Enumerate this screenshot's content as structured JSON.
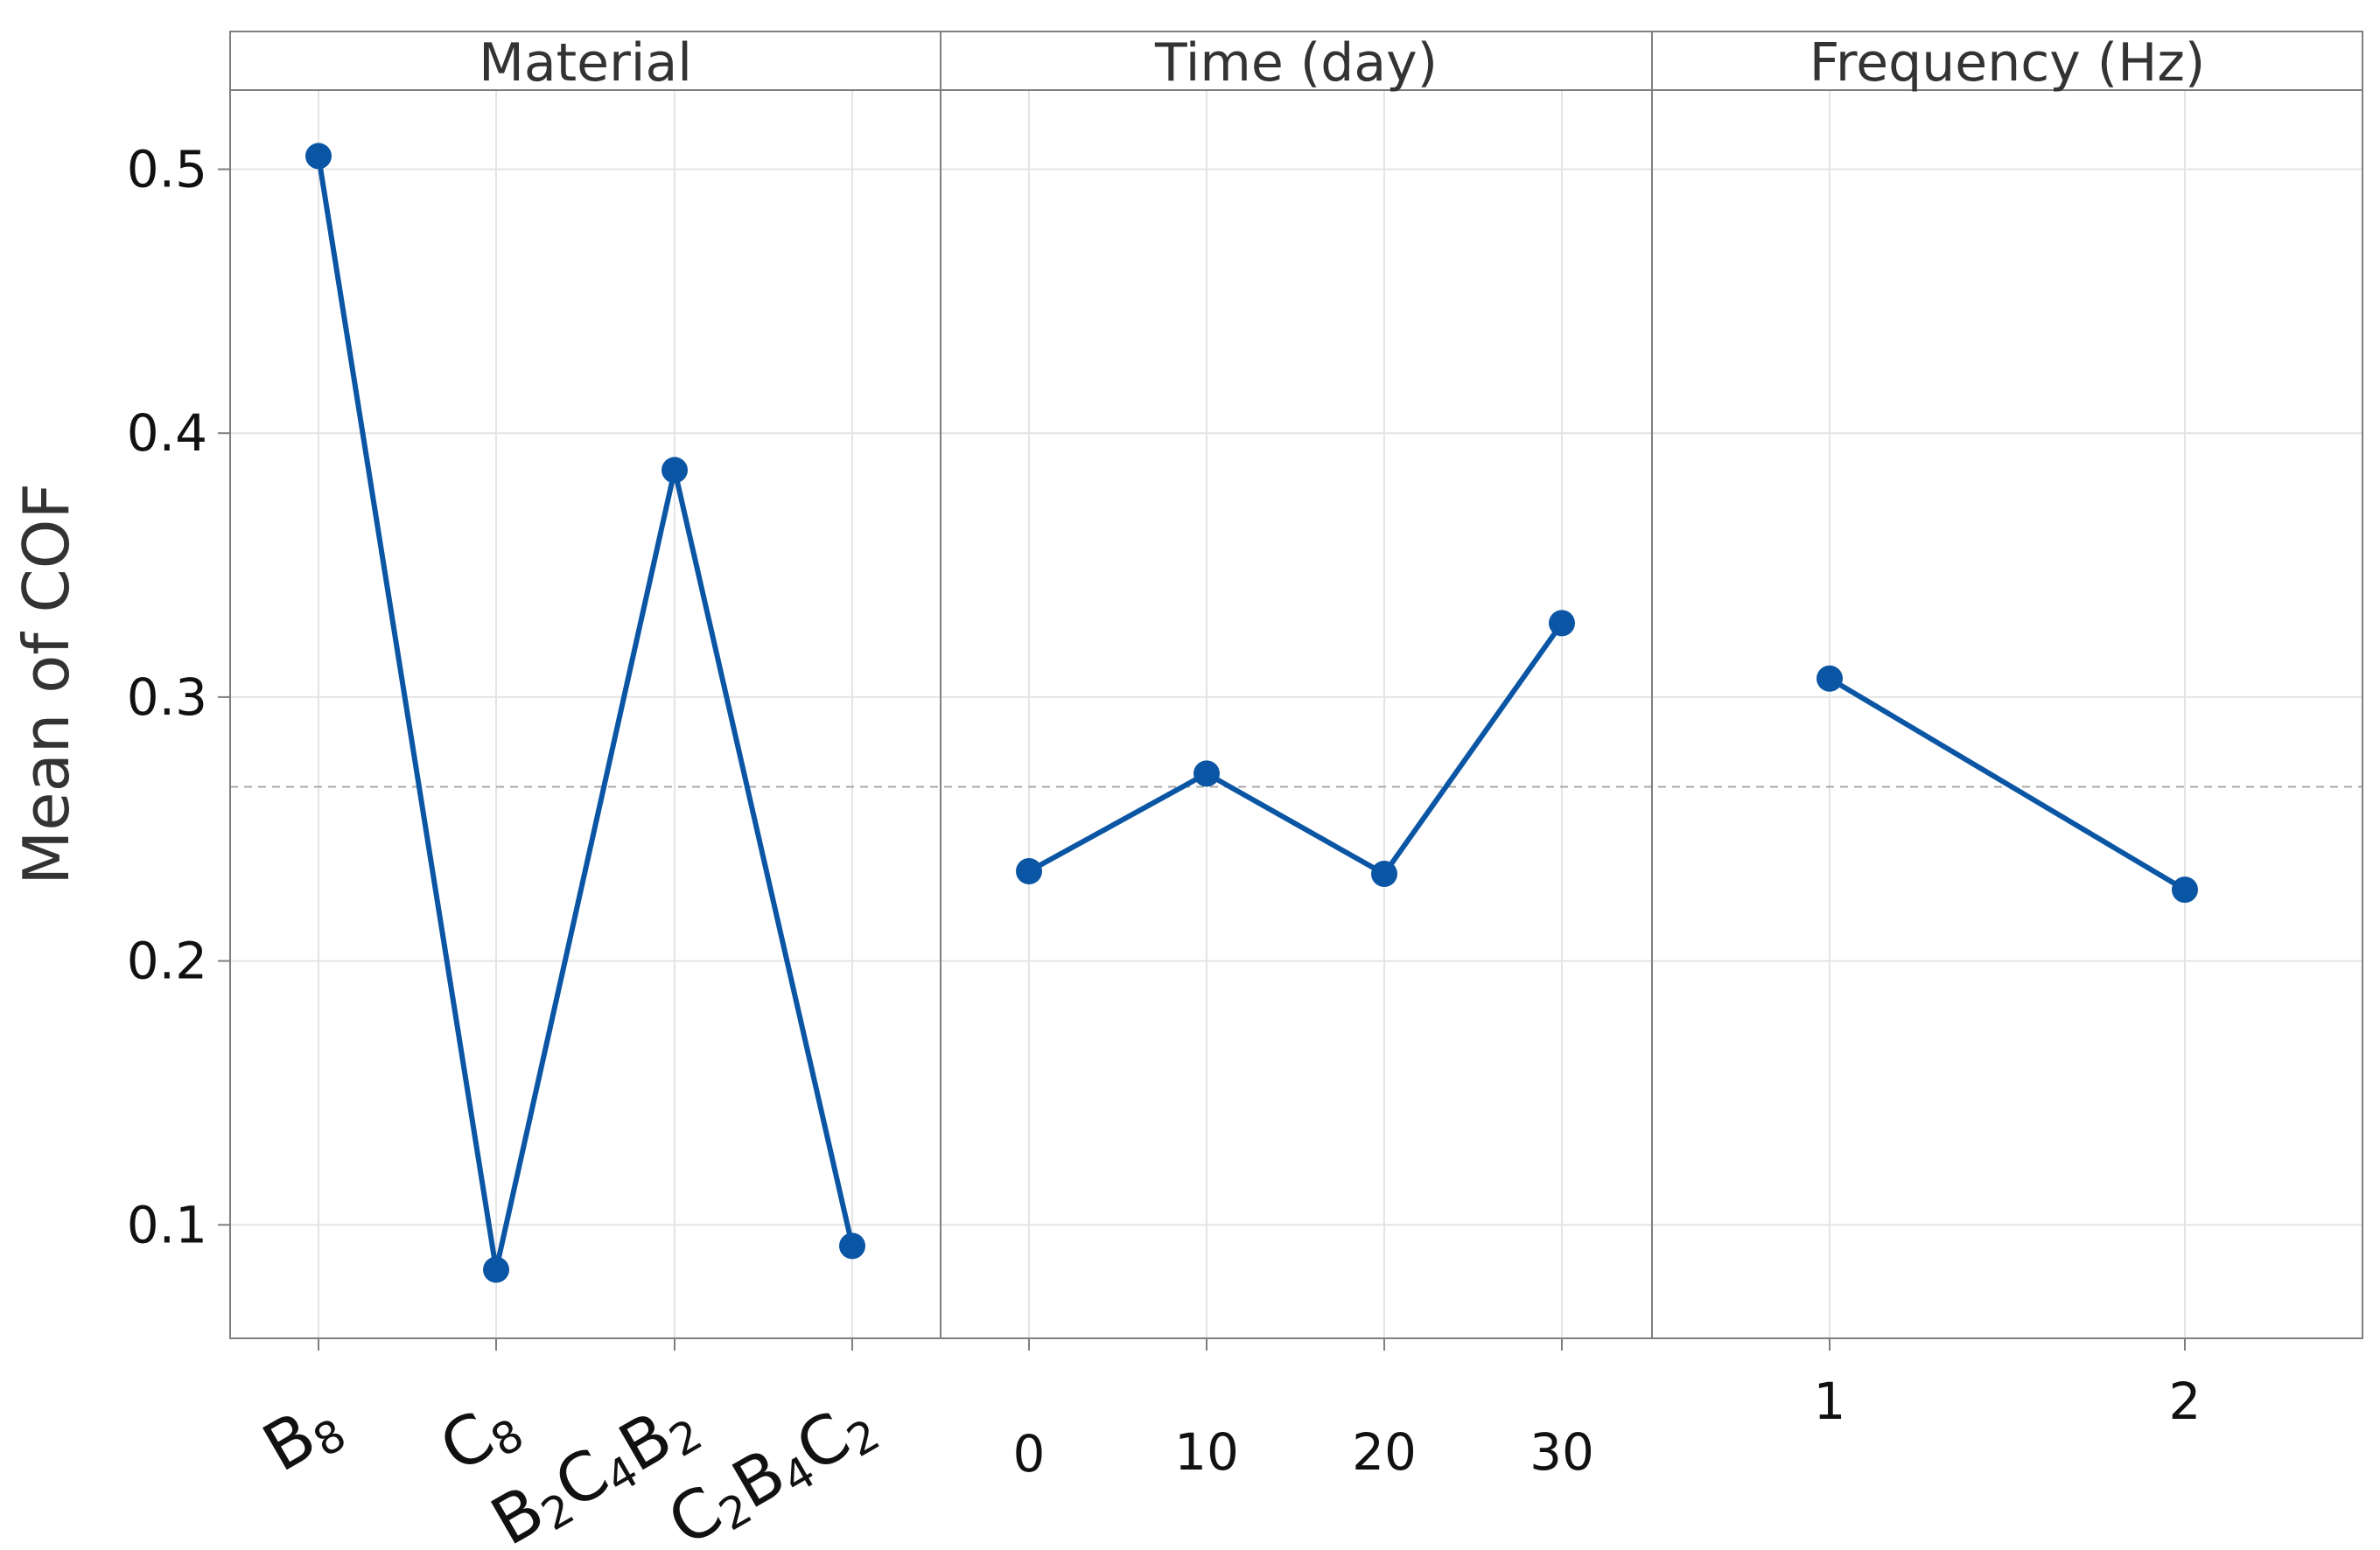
{
  "chart_data": {
    "type": "line",
    "ylabel": "Mean of COF",
    "ylim": [
      0.057,
      0.53
    ],
    "yticks": [
      "0.1",
      "0.2",
      "0.3",
      "0.4",
      "0.5"
    ],
    "ytick_values": [
      0.1,
      0.2,
      0.3,
      0.4,
      0.5
    ],
    "reference_mean": 0.266,
    "grid": true,
    "colors": {
      "series": "#0b56a4",
      "reference": "#a8a8a8"
    },
    "panels": [
      {
        "title": "Material",
        "categories": [
          {
            "base": [
              "B",
              "8"
            ],
            "label": "B8"
          },
          {
            "base": [
              "C",
              "8"
            ],
            "label": "C8"
          },
          {
            "base": [
              "B",
              "2",
              "C",
              "4",
              "B",
              "2"
            ],
            "label": "B2C4B2"
          },
          {
            "base": [
              "C",
              "2",
              "B",
              "4",
              "C",
              "2"
            ],
            "label": "C2B4C2"
          }
        ],
        "values": [
          0.505,
          0.083,
          0.386,
          0.092
        ]
      },
      {
        "title": "Time (day)",
        "categories": [
          "0",
          "10",
          "20",
          "30"
        ],
        "values": [
          0.234,
          0.271,
          0.233,
          0.328
        ]
      },
      {
        "title": "Frequency (Hz)",
        "categories": [
          "1",
          "2"
        ],
        "values": [
          0.307,
          0.227
        ]
      }
    ]
  }
}
